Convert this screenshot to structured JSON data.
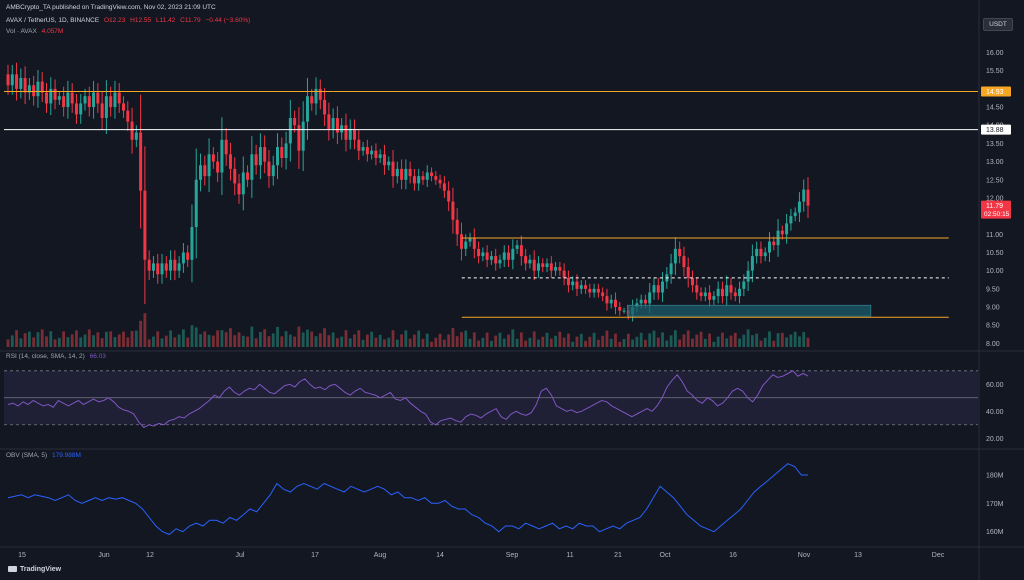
{
  "header": {
    "published_line": "AMBCrypto_TA published on TradingView.com, Nov 02, 2023 21:09 UTC",
    "symbol": "AVAX / TetherUS, 1D, BINANCE",
    "ohlc": {
      "O": "O12.23",
      "H": "H12.55",
      "L": "L11.42",
      "C": "C11.79",
      "change": "−0.44 (−3.60%)"
    },
    "vol_label": "Vol · AVAX",
    "vol_value": "4.057M",
    "rsi_label": "RSI (14, close, SMA, 14, 2)",
    "rsi_value": "66.03",
    "obv_label": "OBV (SMA, 5)",
    "obv_value": "179.988M",
    "currency": "USDT"
  },
  "brand": "TradingView",
  "colors": {
    "up": "#26a69a",
    "down": "#f23645",
    "rsi": "#7e57c2",
    "obv": "#2962ff",
    "orange": "#f5a623",
    "bg": "#131722"
  },
  "chart_data": {
    "type": "candlestick",
    "price_axis": {
      "min": 7.9,
      "max": 16.4,
      "ticks": [
        "16.00",
        "15.50",
        "15.00",
        "14.50",
        "14.00",
        "13.50",
        "13.00",
        "12.50",
        "12.00",
        "11.50",
        "11.00",
        "10.50",
        "10.00",
        "9.50",
        "9.00",
        "8.50",
        "8.00"
      ]
    },
    "time_axis": {
      "ticks": [
        "15",
        "Jun",
        "12",
        "Jul",
        "17",
        "Aug",
        "14",
        "Sep",
        "11",
        "21",
        "Oct",
        "16",
        "Nov",
        "13",
        "Dec"
      ]
    },
    "price_labels": [
      {
        "value": 14.93,
        "text": "14.93",
        "color": "#f5a623"
      },
      {
        "value": 13.88,
        "text": "13.88",
        "color": "#ffffff"
      },
      {
        "value": 11.79,
        "text": "11.79",
        "sub": "02:50:15",
        "color": "#f23645"
      }
    ],
    "close_start": 15.4,
    "closes": [
      15.1,
      15.4,
      15.0,
      15.3,
      14.9,
      15.1,
      14.8,
      15.2,
      14.9,
      14.6,
      15.0,
      14.7,
      14.8,
      14.5,
      14.9,
      14.6,
      14.3,
      14.6,
      14.8,
      14.5,
      14.9,
      14.6,
      14.2,
      14.8,
      14.5,
      14.9,
      14.6,
      14.4,
      14.1,
      13.6,
      13.8,
      12.2,
      10.3,
      10.0,
      10.2,
      9.9,
      10.2,
      10.0,
      10.3,
      10.0,
      10.2,
      10.5,
      10.3,
      11.2,
      12.5,
      12.9,
      12.6,
      13.2,
      13.0,
      12.7,
      13.6,
      13.2,
      12.8,
      12.4,
      12.1,
      12.7,
      12.5,
      13.2,
      12.9,
      13.4,
      13.0,
      12.6,
      12.9,
      13.4,
      13.1,
      13.5,
      14.2,
      14.0,
      13.3,
      14.1,
      14.8,
      14.6,
      15.0,
      14.7,
      14.3,
      13.9,
      14.2,
      13.8,
      14.0,
      13.6,
      13.9,
      13.6,
      13.3,
      13.4,
      13.2,
      13.3,
      13.1,
      13.2,
      12.9,
      13.0,
      12.6,
      12.8,
      12.5,
      12.8,
      12.6,
      12.4,
      12.6,
      12.5,
      12.7,
      12.6,
      12.5,
      12.4,
      12.2,
      11.9,
      11.4,
      11.0,
      10.6,
      10.8,
      10.9,
      10.6,
      10.4,
      10.5,
      10.3,
      10.4,
      10.2,
      10.3,
      10.5,
      10.3,
      10.6,
      10.7,
      10.4,
      10.2,
      10.3,
      10.0,
      10.2,
      10.1,
      10.2,
      10.0,
      10.1,
      10.0,
      9.8,
      9.6,
      9.7,
      9.5,
      9.6,
      9.5,
      9.4,
      9.5,
      9.4,
      9.3,
      9.1,
      9.2,
      9.0,
      8.9,
      8.9,
      8.8,
      9.0,
      9.1,
      9.2,
      9.1,
      9.4,
      9.6,
      9.4,
      9.7,
      9.9,
      10.2,
      10.6,
      10.4,
      10.1,
      9.8,
      9.6,
      9.4,
      9.3,
      9.4,
      9.2,
      9.3,
      9.5,
      9.3,
      9.6,
      9.4,
      9.3,
      9.5,
      9.7,
      10.0,
      10.4,
      10.6,
      10.4,
      10.5,
      10.8,
      10.7,
      11.1,
      11.0,
      11.3,
      11.5,
      11.6,
      11.9,
      12.23,
      11.79
    ],
    "overlays": [
      {
        "kind": "h_line",
        "value": 14.93,
        "color": "#f5a623",
        "x_from": 0,
        "x_to": 1
      },
      {
        "kind": "h_line",
        "value": 13.88,
        "color": "#ffffff",
        "x_from": 0,
        "x_to": 1
      },
      {
        "kind": "h_line",
        "value": 10.9,
        "color": "#f5a623",
        "x_from": 0.47,
        "x_to": 0.97
      },
      {
        "kind": "h_dashed",
        "value": 9.8,
        "color": "#ffffff",
        "x_from": 0.47,
        "x_to": 0.97
      },
      {
        "kind": "h_line",
        "value": 8.72,
        "color": "#f5a623",
        "x_from": 0.47,
        "x_to": 0.97
      },
      {
        "kind": "zone",
        "low": 8.75,
        "high": 9.05,
        "color": "#1b5e6a",
        "x_from": 0.64,
        "x_to": 0.89
      }
    ],
    "rsi": {
      "levels": [
        70,
        50,
        30
      ],
      "axis_ticks": [
        "60.00",
        "40.00",
        "20.00"
      ],
      "values": [
        45,
        46,
        44,
        47,
        45,
        48,
        46,
        44,
        45,
        43,
        48,
        46,
        44,
        46,
        48,
        45,
        47,
        49,
        47,
        48,
        50,
        47,
        43,
        41,
        40,
        38,
        32,
        28,
        30,
        29,
        31,
        30,
        33,
        34,
        36,
        35,
        38,
        40,
        42,
        45,
        48,
        52,
        50,
        55,
        58,
        54,
        52,
        55,
        57,
        56,
        60,
        57,
        54,
        53,
        56,
        59,
        60,
        58,
        62,
        64,
        60,
        57,
        58,
        56,
        59,
        60,
        57,
        54,
        52,
        55,
        57,
        54,
        53,
        52,
        50,
        52,
        54,
        49,
        48,
        50,
        46,
        43,
        40,
        38,
        32,
        30,
        33,
        34,
        35,
        33,
        32,
        36,
        38,
        37,
        35,
        38,
        40,
        42,
        36,
        34,
        38,
        40,
        38,
        37,
        39,
        45,
        55,
        57,
        52,
        44,
        42,
        40,
        41,
        39,
        40,
        42,
        44,
        46,
        48,
        47,
        44,
        42,
        40,
        38,
        36,
        38,
        40,
        42,
        40,
        44,
        50,
        58,
        63,
        67,
        62,
        55,
        52,
        48,
        46,
        50,
        48,
        44,
        46,
        50,
        55,
        57,
        55,
        50,
        47,
        52,
        59,
        63,
        67,
        65,
        66,
        68,
        70,
        66,
        68,
        66.03
      ]
    },
    "obv": {
      "axis_ticks": [
        "180M",
        "170M",
        "160M"
      ],
      "values": [
        172,
        172.5,
        173,
        172,
        173,
        172.5,
        172,
        171,
        172,
        173,
        171,
        170,
        171,
        172,
        171,
        172,
        171.5,
        172,
        171,
        170,
        168,
        165,
        162,
        160,
        159,
        161,
        160,
        162,
        163,
        162,
        164,
        164,
        163,
        165,
        164,
        166,
        168,
        167,
        170,
        173,
        177,
        175,
        174,
        176,
        177,
        176,
        175,
        177,
        176,
        175,
        174,
        176,
        175,
        174,
        175,
        176,
        175,
        173,
        174,
        172,
        172,
        171,
        172,
        170,
        170,
        171,
        169,
        168,
        168,
        166,
        165,
        163,
        162,
        160,
        162,
        162,
        161,
        163,
        162,
        161,
        162,
        163,
        161,
        162,
        161,
        163,
        162,
        162,
        160,
        161,
        162,
        161,
        163,
        164,
        165,
        168,
        172,
        176,
        174,
        172,
        169,
        166,
        164,
        162,
        161,
        160,
        162,
        164,
        166,
        168,
        171,
        174,
        176,
        178,
        180,
        182,
        184,
        183,
        180,
        179.99
      ]
    }
  }
}
